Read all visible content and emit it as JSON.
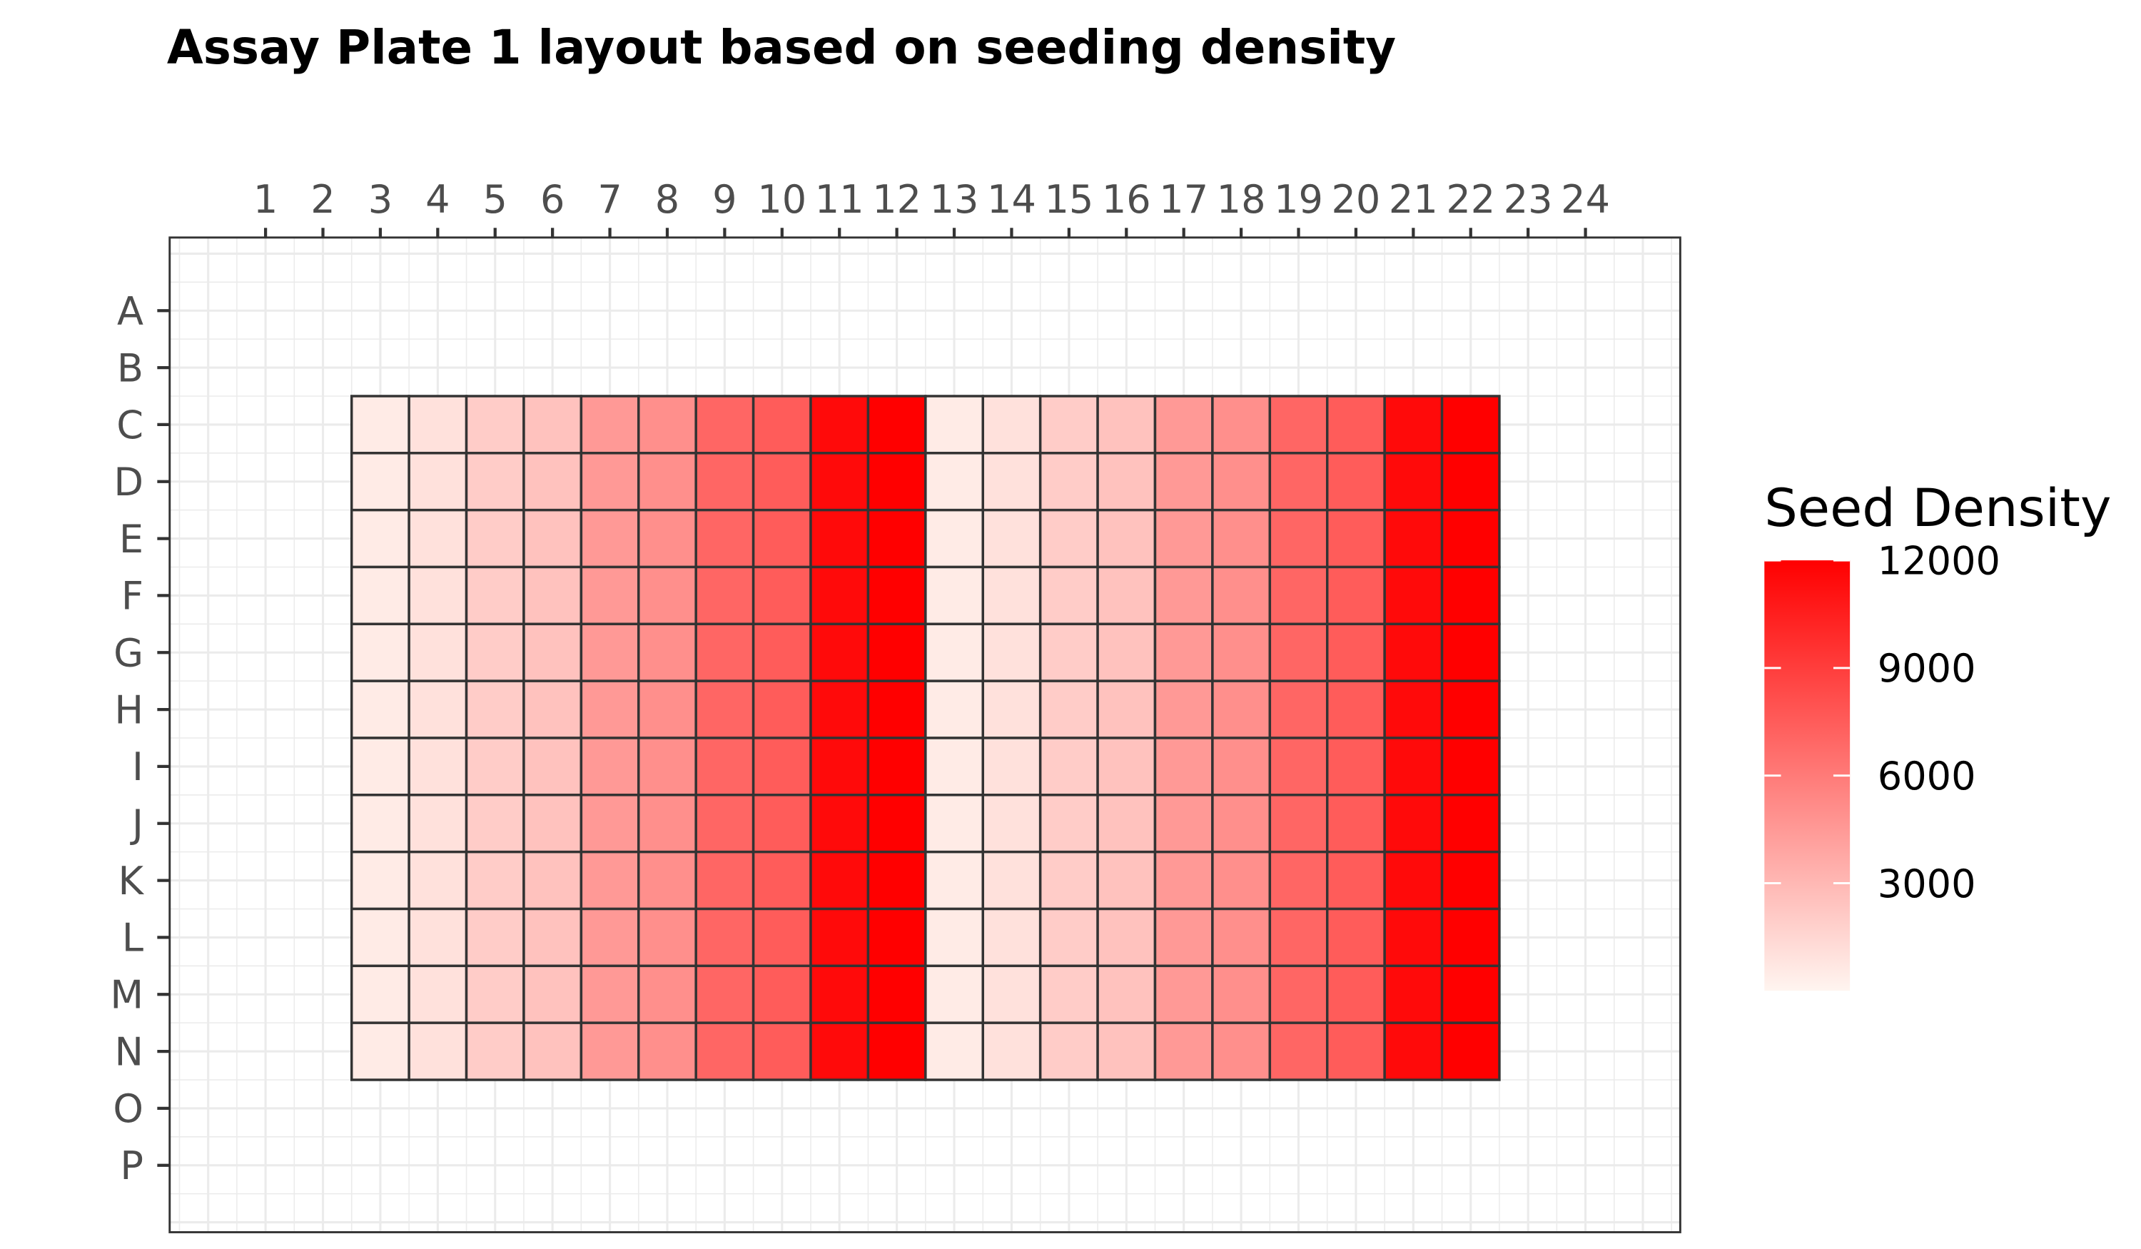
{
  "chart_data": {
    "type": "heatmap",
    "title": "Assay Plate 1 layout based on seeding density",
    "x_ticks": [
      "1",
      "2",
      "3",
      "4",
      "5",
      "6",
      "7",
      "8",
      "9",
      "10",
      "11",
      "12",
      "13",
      "14",
      "15",
      "16",
      "17",
      "18",
      "19",
      "20",
      "21",
      "22",
      "23",
      "24"
    ],
    "y_ticks": [
      "A",
      "B",
      "C",
      "D",
      "E",
      "F",
      "G",
      "H",
      "I",
      "J",
      "K",
      "L",
      "M",
      "N",
      "O",
      "P"
    ],
    "x_axis_position": "top",
    "filled_rows": [
      "C",
      "D",
      "E",
      "F",
      "G",
      "H",
      "I",
      "J",
      "K",
      "L",
      "M",
      "N"
    ],
    "filled_columns": [
      "3",
      "4",
      "5",
      "6",
      "7",
      "8",
      "9",
      "10",
      "11",
      "12",
      "13",
      "14",
      "15",
      "16",
      "17",
      "18",
      "19",
      "20",
      "21",
      "22"
    ],
    "column_values": [
      500,
      1000,
      2000,
      2500,
      4500,
      5000,
      7000,
      7500,
      11500,
      12000,
      500,
      1000,
      2000,
      2500,
      4500,
      5000,
      7000,
      7500,
      11500,
      12000
    ],
    "legend": {
      "title": "Seed Density",
      "position": "right",
      "min": 0,
      "max": 12000,
      "ticks": [
        "12000",
        "9000",
        "6000",
        "3000"
      ],
      "tick_values": [
        12000,
        9000,
        6000,
        3000
      ],
      "color_low": "#fff5f0",
      "color_high": "#ff0000"
    },
    "grid": true,
    "panel_border_color": "#333333",
    "grid_color": "#ebebeb",
    "tile_border_color": "#333333"
  }
}
